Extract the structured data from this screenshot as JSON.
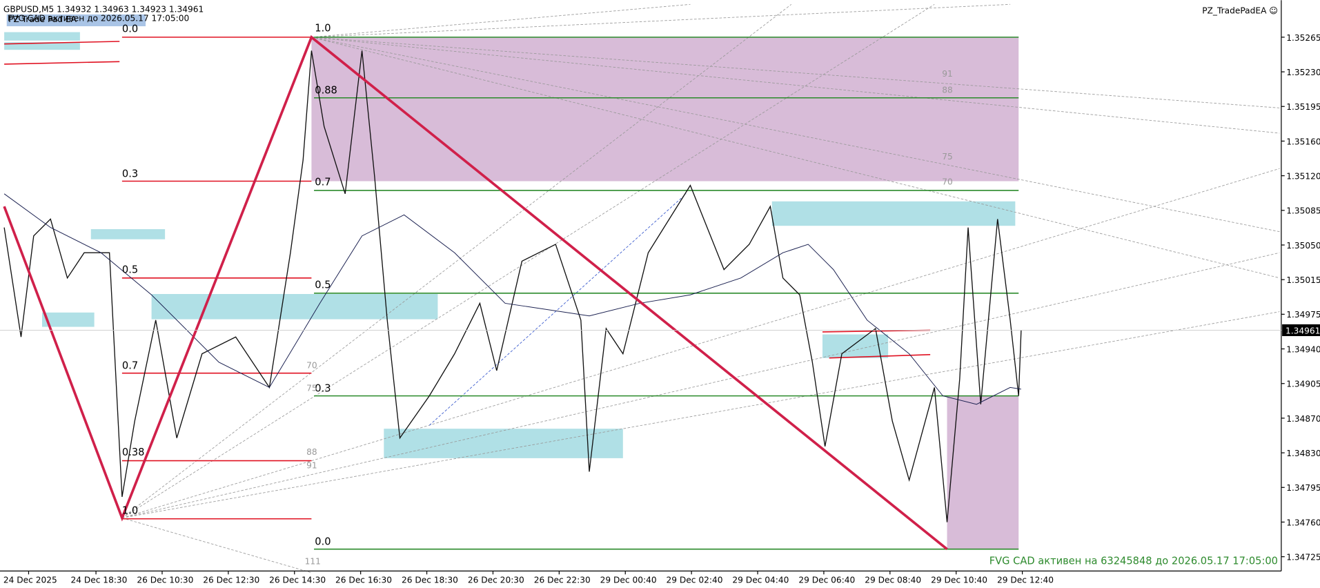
{
  "header": {
    "symbol": "GBPUSD,M5  1.34932 1.34963 1.34923 1.34961",
    "notice": "FVG CAD активен до 2026.05.17 17:05:00",
    "panel": "PZ Trade Pad EA",
    "ea": "PZ_TradePadEA ☺"
  },
  "price_axis": {
    "labels": [
      "1.35265",
      "1.35230",
      "1.35195",
      "1.35160",
      "1.35120",
      "1.35085",
      "1.35050",
      "1.35015",
      "1.34975",
      "1.34940",
      "1.34905",
      "1.34870",
      "1.34830",
      "1.34795",
      "1.34760",
      "1.34725"
    ],
    "current": "1.34961"
  },
  "time_axis": [
    "24 Dec 2025",
    "24 Dec 18:30",
    "26 Dec 10:30",
    "26 Dec 12:30",
    "26 Dec 14:30",
    "26 Dec 16:30",
    "26 Dec 18:30",
    "26 Dec 20:30",
    "26 Dec 22:30",
    "29 Dec 00:40",
    "29 Dec 02:40",
    "29 Dec 04:40",
    "29 Dec 06:40",
    "29 Dec 08:40",
    "29 Dec 10:40",
    "29 Dec 12:40"
  ],
  "fib_labels": [
    "0.0",
    "1.0",
    "0.88",
    "0.3",
    "0.7",
    "0.5",
    "0.5",
    "0.7",
    "0.3",
    "0.38",
    "1.0",
    "0.0"
  ],
  "level_labels": [
    "91",
    "88",
    "75",
    "70",
    "70",
    "75",
    "88",
    "91",
    "111"
  ],
  "footer": "FVG CAD активен на 63245848 до 2026.05.17 17:05:00"
}
